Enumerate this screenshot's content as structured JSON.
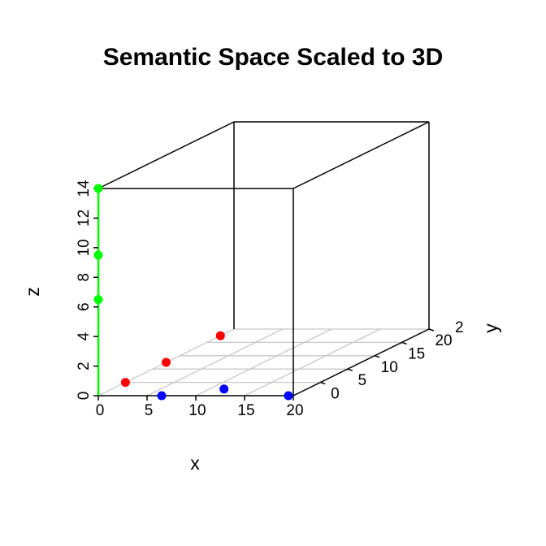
{
  "chart_data": {
    "type": "scatter",
    "title": "Semantic Space Scaled to 3D",
    "xlabel": "x",
    "ylabel": "y",
    "zlabel": "z",
    "xlim": [
      0,
      20
    ],
    "ylim": [
      -5,
      20
    ],
    "zlim": [
      0,
      14
    ],
    "x_ticks": [
      "0",
      "5",
      "10",
      "15",
      "20"
    ],
    "y_ticks": [
      "0",
      "5",
      "10",
      "15",
      "20"
    ],
    "y_extra_tick_label": "2",
    "z_ticks": [
      "0",
      "2",
      "4",
      "6",
      "8",
      "10",
      "12",
      "14"
    ],
    "grid": "xy-plane",
    "series": [
      {
        "color": "#ff0000",
        "points": [
          {
            "x": 0,
            "y": 0,
            "z": 0
          },
          {
            "x": 0,
            "y": 7.5,
            "z": 0
          },
          {
            "x": 0,
            "y": 17.5,
            "z": 0
          }
        ]
      },
      {
        "color": "#0000ff",
        "points": [
          {
            "x": 6.5,
            "y": -5,
            "z": 0
          },
          {
            "x": 11.5,
            "y": -2.5,
            "z": 0
          },
          {
            "x": 19.5,
            "y": -5,
            "z": 0
          }
        ]
      },
      {
        "color": "#00ff00",
        "points": [
          {
            "x": 0,
            "y": -5,
            "z": 6.5
          },
          {
            "x": 0,
            "y": -5,
            "z": 9.5
          },
          {
            "x": 0,
            "y": -5,
            "z": 14
          }
        ]
      }
    ],
    "z_axis_line_color": "#00ff00"
  }
}
